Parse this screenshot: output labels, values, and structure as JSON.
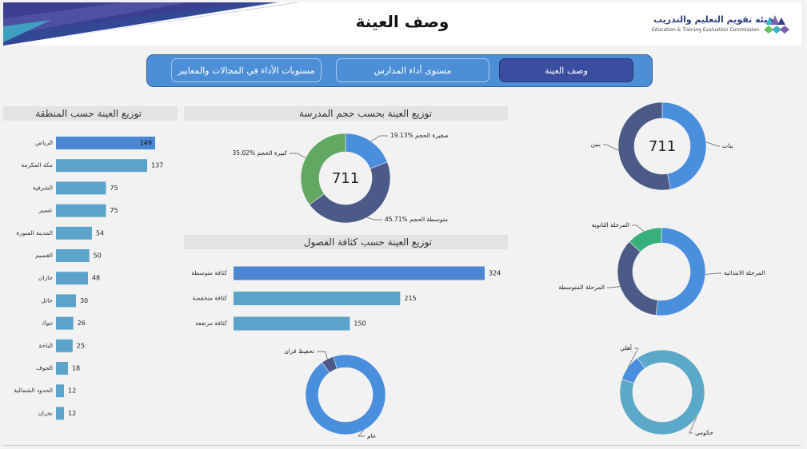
{
  "header": {
    "title": "وصف العينة",
    "logo_ar": "هيئة تقويم التعليم والتدريب",
    "logo_en": "Education & Training Evaluation Commission"
  },
  "nav": {
    "tabs": [
      {
        "label": "مستويات الأداء في المجالات والمعايير",
        "active": false
      },
      {
        "label": "مستوى أداء المدارس",
        "active": false
      },
      {
        "label": "وصف العينة",
        "active": true
      }
    ]
  },
  "colors": {
    "bar": "#5ba3c9",
    "bar_dark": "#4a86d1",
    "donut_blue": "#4a8ede",
    "donut_navy": "#4b5a86",
    "donut_green": "#62a862",
    "donut_teal": "#37b07c",
    "donut_lightblue": "#5ca8c8"
  },
  "chart_data": [
    {
      "id": "region",
      "type": "bar",
      "orientation": "horizontal",
      "title": "توزيع العينة حسب المنطقة",
      "categories": [
        "الرياض",
        "مكة المكرمة",
        "الشرقية",
        "عسير",
        "المدينة المنورة",
        "القصيم",
        "جازان",
        "حائل",
        "تبوك",
        "الباحة",
        "الجوف",
        "الحدود الشمالية",
        "نجران"
      ],
      "values": [
        149,
        137,
        75,
        75,
        54,
        50,
        48,
        30,
        26,
        25,
        18,
        12,
        12
      ],
      "xlim": [
        0,
        170
      ]
    },
    {
      "id": "school_size",
      "type": "pie",
      "donut": true,
      "title": "توزيع العينة بحسب حجم المدرسة",
      "center_label": "711",
      "slices": [
        {
          "label": "صغيرة الحجم",
          "value": 19.13,
          "value_label": "19.13%",
          "color": "#4a8ede"
        },
        {
          "label": "متوسطة الحجم",
          "value": 45.71,
          "value_label": "45.71%",
          "color": "#4b5a86"
        },
        {
          "label": "كبيرة الحجم",
          "value": 35.02,
          "value_label": "35.02%",
          "color": "#62a862"
        }
      ]
    },
    {
      "id": "class_density",
      "type": "bar",
      "orientation": "horizontal",
      "title": "توزيع العينة حسب كثافة  الفصول",
      "categories": [
        "كثافة متوسطة",
        "كثافة منخفضة",
        "كثافة مرتفعة"
      ],
      "values": [
        324,
        215,
        150
      ],
      "xlim": [
        0,
        340
      ]
    },
    {
      "id": "school_type",
      "type": "pie",
      "donut": true,
      "slices": [
        {
          "label": "عام",
          "value": 95,
          "color": "#4a8ede"
        },
        {
          "label": "تحفيظ قران",
          "value": 5,
          "color": "#4b5a86"
        }
      ]
    },
    {
      "id": "gender",
      "type": "pie",
      "donut": true,
      "center_label": "711",
      "slices": [
        {
          "label": "بنات",
          "value": 47,
          "color": "#4a8ede"
        },
        {
          "label": "بنين",
          "value": 53,
          "color": "#4b5a86"
        }
      ]
    },
    {
      "id": "stage",
      "type": "pie",
      "donut": true,
      "slices": [
        {
          "label": "المرحلة الابتدائية",
          "value": 52,
          "color": "#4a8ede"
        },
        {
          "label": "المرحلة المتوسطة",
          "value": 35,
          "color": "#4b5a86"
        },
        {
          "label": "المرحلة الثانوية",
          "value": 13,
          "color": "#37b07c"
        }
      ]
    },
    {
      "id": "sector",
      "type": "pie",
      "donut": true,
      "slices": [
        {
          "label": "حكومي",
          "value": 90,
          "color": "#5ca8c8"
        },
        {
          "label": "أهلي",
          "value": 10,
          "color": "#4a8ede"
        }
      ]
    }
  ]
}
